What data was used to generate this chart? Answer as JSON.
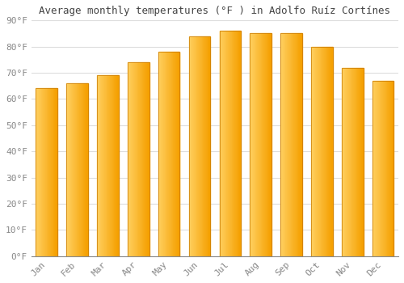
{
  "title": "Average monthly temperatures (°F ) in Adolfo Ruíz Cortínes",
  "months": [
    "Jan",
    "Feb",
    "Mar",
    "Apr",
    "May",
    "Jun",
    "Jul",
    "Aug",
    "Sep",
    "Oct",
    "Nov",
    "Dec"
  ],
  "values": [
    64,
    66,
    69,
    74,
    78,
    84,
    86,
    85,
    85,
    80,
    72,
    67
  ],
  "bar_color_left": "#FFD060",
  "bar_color_right": "#F5A000",
  "bar_edge_color": "#C87800",
  "ylim": [
    0,
    90
  ],
  "yticks": [
    0,
    10,
    20,
    30,
    40,
    50,
    60,
    70,
    80,
    90
  ],
  "ytick_labels": [
    "0°F",
    "10°F",
    "20°F",
    "30°F",
    "40°F",
    "50°F",
    "60°F",
    "70°F",
    "80°F",
    "90°F"
  ],
  "bg_color": "#ffffff",
  "grid_color": "#dddddd",
  "title_fontsize": 9,
  "tick_fontsize": 8,
  "font_family": "monospace",
  "tick_color": "#888888"
}
